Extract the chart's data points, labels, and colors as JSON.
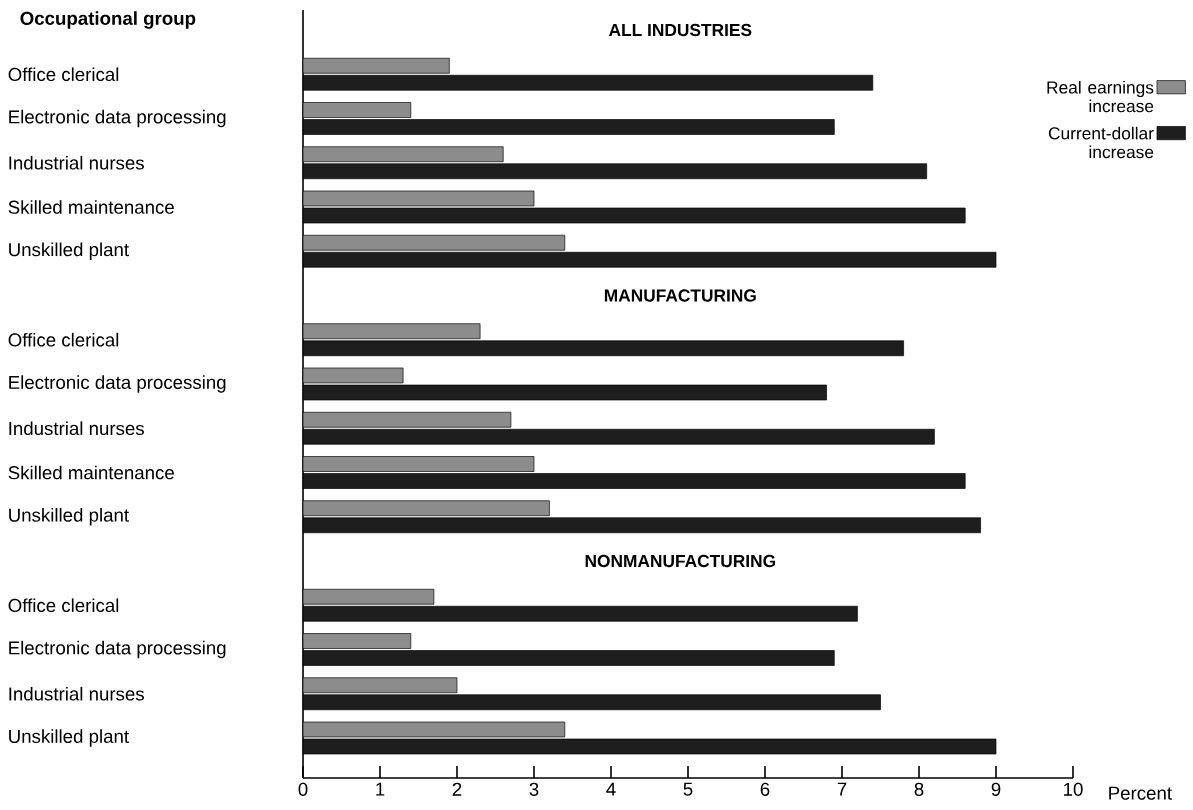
{
  "chart_data": {
    "type": "bar",
    "orientation": "horizontal",
    "ylabel": "Occupational group",
    "xlabel": "Percent",
    "categories": [
      null,
      "Office clerical",
      "Electronic data processing",
      "Industrial nurses",
      "Skilled maintenance",
      "Unskilled plant",
      null,
      "Office clerical",
      "Electronic data processing",
      "Industrial nurses",
      "Skilled maintenance",
      "Unskilled plant",
      null,
      "Office clerical",
      "Electronic data processing",
      "Industrial nurses",
      "Unskilled plant"
    ],
    "series": [
      {
        "name": "Real earnings increase",
        "color": "#8c8c8c",
        "values": [
          null,
          1.9,
          1.4,
          2.6,
          3.0,
          3.4,
          null,
          2.3,
          1.3,
          2.7,
          3.0,
          3.2,
          null,
          1.7,
          1.4,
          2.0,
          3.4
        ]
      },
      {
        "name": "Current-dollar increase",
        "color": "#1e1e1e",
        "values": [
          null,
          7.4,
          6.9,
          8.1,
          8.6,
          9.0,
          null,
          7.8,
          6.8,
          8.2,
          8.6,
          8.8,
          null,
          7.2,
          6.9,
          7.5,
          9.0
        ]
      }
    ],
    "annotations": [
      "ALL INDUSTRIES",
      "MANUFACTURING",
      "NONMANUFACTURING"
    ],
    "xlim": [
      0,
      10
    ],
    "xticks": [
      0,
      1,
      2,
      3,
      4,
      5,
      6,
      7,
      8,
      9,
      10
    ],
    "grid": false,
    "legend": "top right"
  }
}
